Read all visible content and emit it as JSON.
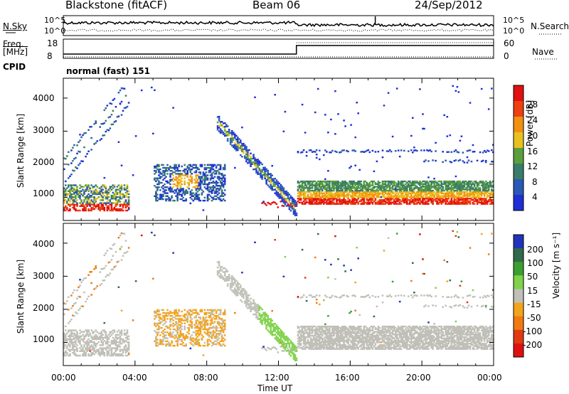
{
  "header": {
    "station": "Blackstone (fitACF)",
    "beam": "Beam 06",
    "date": "24/Sep/2012"
  },
  "top_panels": {
    "nsky_label": "N.Sky",
    "nsky_ticks": [
      "10^5",
      "10^0"
    ],
    "nsearch_label": "N.Search",
    "nsearch_ticks": [
      "10^5",
      "10^0"
    ],
    "freq_label_line1": "Freq.",
    "freq_label_line2": "[MHz]",
    "freq_ticks": [
      "18",
      "8"
    ],
    "nave_label": "Nave",
    "nave_ticks": [
      "60",
      "0"
    ],
    "cpid_label": "CPID",
    "cpid_value": "normal (fast) 151"
  },
  "chart_data": [
    {
      "type": "heatmap",
      "name": "power",
      "ylabel": "Slant Range [km]",
      "yticks": [
        1000,
        2000,
        3000,
        4000
      ],
      "ylim": [
        300,
        4600
      ],
      "colorbar_label": "Power [dB]",
      "colorbar_ticks": [
        4,
        8,
        12,
        16,
        20,
        24,
        28
      ],
      "colorbar_range": [
        0,
        32
      ],
      "colors": [
        "#1f2fd6",
        "#2a58b4",
        "#3a7c6a",
        "#5a9f3c",
        "#e8c020",
        "#f29010",
        "#ee4010",
        "#e21010"
      ]
    },
    {
      "type": "heatmap",
      "name": "velocity",
      "ylabel": "Slant Range [km]",
      "yticks": [
        1000,
        2000,
        3000,
        4000
      ],
      "ylim": [
        300,
        4600
      ],
      "colorbar_label": "Velocity [m s⁻¹]",
      "colorbar_ticks": [
        200,
        100,
        50,
        15,
        -15,
        -50,
        -100,
        -200
      ],
      "colors": [
        "#2233bb",
        "#2f6a4a",
        "#39a030",
        "#7fd24a",
        "#c0c0b8",
        "#f4a41c",
        "#f07a10",
        "#e23a10",
        "#e01010"
      ]
    }
  ],
  "xaxis": {
    "label": "Time UT",
    "ticks": [
      "00:00",
      "04:00",
      "08:00",
      "12:00",
      "16:00",
      "20:00",
      "00:00"
    ],
    "range_hours": [
      0,
      24
    ]
  }
}
